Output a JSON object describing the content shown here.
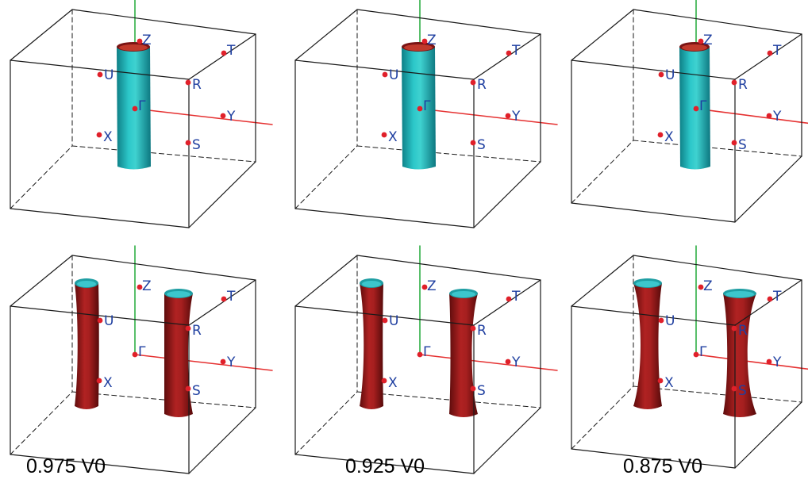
{
  "point_labels": {
    "zone_center": "Γ",
    "x": "X",
    "y": "Y",
    "z": "Z",
    "u": "U",
    "t": "T",
    "r": "R",
    "s": "S"
  },
  "captions": [
    "0.975 V0",
    "0.925 V0",
    "0.875 V0"
  ],
  "colors": {
    "box_edge": "#1a1a1a",
    "point": "#e0202a",
    "label": "#1f3fa0",
    "axis_y": "#e53030",
    "axis_z": "#22aa3a",
    "cylinder_cyan": "#18b3b3",
    "surface_red": "#9a1a1a",
    "surface_red_inner": "#3cc6cc"
  }
}
